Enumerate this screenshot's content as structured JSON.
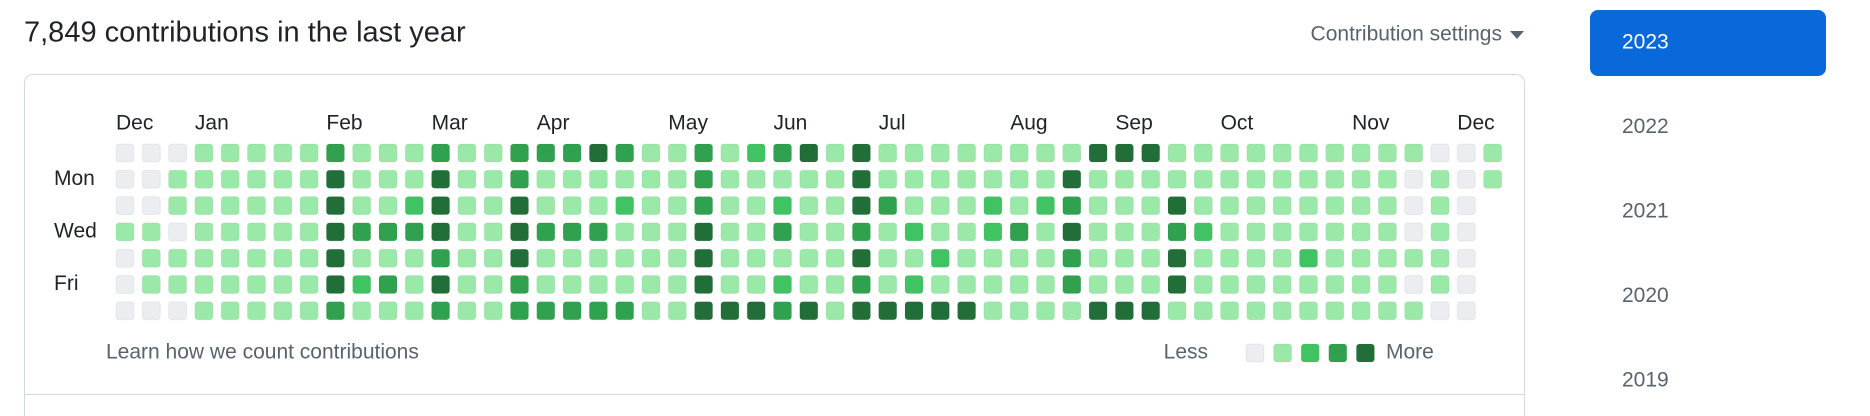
{
  "header": {
    "title": "7,849 contributions in the last year",
    "settings": "Contribution settings"
  },
  "graph": {
    "months": [
      "Dec",
      "Jan",
      "Feb",
      "Mar",
      "Apr",
      "May",
      "Jun",
      "Jul",
      "Aug",
      "Sep",
      "Oct",
      "Nov",
      "Dec"
    ],
    "days": [
      "Mon",
      "Wed",
      "Fri"
    ],
    "level_colors": [
      "#ebedf0",
      "#9be9a8",
      "#40c463",
      "#30a14e",
      "#216e39"
    ],
    "rows": [
      [
        0,
        0,
        0,
        1,
        1,
        1,
        1,
        1,
        3,
        1,
        1,
        1,
        3,
        1,
        1,
        3,
        3,
        3,
        4,
        3,
        1,
        1,
        3,
        1,
        2,
        3,
        4,
        1,
        4,
        1,
        1,
        1,
        1,
        1,
        1,
        1,
        1,
        4,
        4,
        4,
        1,
        1,
        1,
        1,
        1,
        1,
        1,
        1,
        1,
        1,
        0,
        0,
        1
      ],
      [
        0,
        0,
        1,
        1,
        1,
        1,
        1,
        1,
        4,
        1,
        1,
        1,
        4,
        1,
        1,
        3,
        1,
        1,
        1,
        1,
        1,
        1,
        3,
        1,
        1,
        1,
        1,
        1,
        4,
        1,
        1,
        1,
        1,
        1,
        1,
        1,
        4,
        1,
        1,
        1,
        1,
        1,
        1,
        1,
        1,
        1,
        1,
        1,
        1,
        0,
        1,
        0,
        1
      ],
      [
        0,
        0,
        1,
        1,
        1,
        1,
        1,
        1,
        4,
        1,
        1,
        2,
        4,
        1,
        1,
        4,
        1,
        1,
        1,
        2,
        1,
        1,
        3,
        1,
        1,
        2,
        1,
        1,
        4,
        3,
        1,
        1,
        1,
        2,
        1,
        2,
        3,
        1,
        1,
        1,
        4,
        1,
        1,
        1,
        1,
        1,
        1,
        1,
        1,
        0,
        1,
        0,
        null
      ],
      [
        1,
        1,
        0,
        1,
        1,
        1,
        1,
        1,
        4,
        3,
        3,
        3,
        4,
        1,
        1,
        4,
        3,
        3,
        3,
        1,
        1,
        1,
        4,
        1,
        1,
        3,
        1,
        1,
        3,
        1,
        2,
        1,
        1,
        2,
        3,
        1,
        4,
        1,
        1,
        1,
        3,
        2,
        1,
        1,
        1,
        1,
        1,
        1,
        1,
        0,
        1,
        0,
        null
      ],
      [
        0,
        1,
        1,
        1,
        1,
        1,
        1,
        1,
        4,
        1,
        1,
        1,
        3,
        1,
        1,
        4,
        1,
        1,
        1,
        1,
        1,
        1,
        4,
        1,
        1,
        1,
        1,
        1,
        4,
        1,
        1,
        2,
        1,
        1,
        1,
        1,
        3,
        1,
        1,
        1,
        4,
        1,
        1,
        1,
        1,
        2,
        1,
        1,
        1,
        1,
        1,
        0,
        null
      ],
      [
        0,
        1,
        1,
        1,
        1,
        1,
        1,
        1,
        4,
        2,
        3,
        1,
        4,
        1,
        1,
        3,
        1,
        1,
        1,
        1,
        1,
        1,
        4,
        1,
        1,
        2,
        1,
        1,
        3,
        1,
        2,
        1,
        1,
        1,
        1,
        1,
        3,
        1,
        1,
        1,
        4,
        1,
        1,
        1,
        1,
        1,
        1,
        1,
        1,
        0,
        1,
        0,
        null
      ],
      [
        0,
        0,
        0,
        1,
        1,
        1,
        1,
        1,
        3,
        1,
        1,
        1,
        3,
        1,
        1,
        3,
        3,
        3,
        3,
        3,
        1,
        1,
        4,
        4,
        4,
        3,
        4,
        1,
        4,
        4,
        4,
        4,
        4,
        1,
        1,
        1,
        1,
        4,
        4,
        4,
        1,
        1,
        1,
        1,
        1,
        1,
        1,
        1,
        1,
        1,
        0,
        0,
        null
      ]
    ],
    "footer_link": "Learn how we count contributions",
    "less": "Less",
    "more": "More"
  },
  "years": [
    "2023",
    "2022",
    "2021",
    "2020",
    "2019"
  ]
}
